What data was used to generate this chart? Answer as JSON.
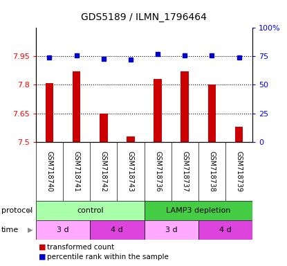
{
  "title": "GDS5189 / ILMN_1796464",
  "samples": [
    "GSM718740",
    "GSM718741",
    "GSM718742",
    "GSM718743",
    "GSM718736",
    "GSM718737",
    "GSM718738",
    "GSM718739"
  ],
  "red_values": [
    7.81,
    7.87,
    7.65,
    7.53,
    7.83,
    7.87,
    7.8,
    7.58
  ],
  "blue_values": [
    74,
    76,
    73,
    72,
    77,
    76,
    76,
    74
  ],
  "ylim_left": [
    7.5,
    8.1
  ],
  "ylim_right": [
    0,
    100
  ],
  "yticks_left": [
    7.5,
    7.65,
    7.8,
    7.95
  ],
  "yticks_right": [
    0,
    25,
    50,
    75,
    100
  ],
  "ytick_labels_left": [
    "7.5",
    "7.65",
    "7.8",
    "7.95"
  ],
  "ytick_labels_right": [
    "0",
    "25",
    "50",
    "75",
    "100%"
  ],
  "protocol_groups": [
    {
      "label": "control",
      "start": 0,
      "end": 4,
      "color": "#aaffaa"
    },
    {
      "label": "LAMP3 depletion",
      "start": 4,
      "end": 8,
      "color": "#44cc44"
    }
  ],
  "time_groups": [
    {
      "label": "3 d",
      "start": 0,
      "end": 2,
      "color": "#ffaaff"
    },
    {
      "label": "4 d",
      "start": 2,
      "end": 4,
      "color": "#dd44dd"
    },
    {
      "label": "3 d",
      "start": 4,
      "end": 6,
      "color": "#ffaaff"
    },
    {
      "label": "4 d",
      "start": 6,
      "end": 8,
      "color": "#dd44dd"
    }
  ],
  "bar_color": "#CC0000",
  "dot_color": "#0000CC",
  "bg_color": "#ffffff",
  "sample_bg": "#cccccc",
  "legend_red_label": "transformed count",
  "legend_blue_label": "percentile rank within the sample",
  "protocol_label": "protocol",
  "time_label": "time",
  "bar_width": 0.3
}
